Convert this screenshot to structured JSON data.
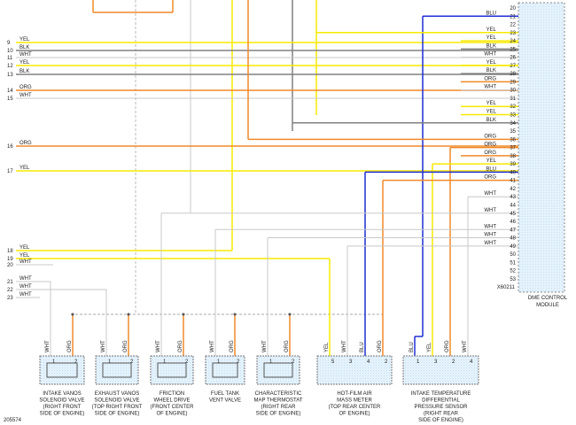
{
  "figure_id": "205574",
  "connector_id": "X60211",
  "module_label": [
    "DME CONTROL",
    "MODULE"
  ],
  "wire_colors": {
    "YEL": "#f7ea00",
    "BLK": "#808080",
    "WHT": "#c8c8c8",
    "ORG": "#f08a2a",
    "BLU": "#1f2fd4"
  },
  "left_pins": [
    {
      "pin": "9",
      "color": "YEL"
    },
    {
      "pin": "10",
      "color": "BLK"
    },
    {
      "pin": "11",
      "color": "WHT"
    },
    {
      "pin": "12",
      "color": "YEL"
    },
    {
      "pin": "13",
      "color": "BLK"
    },
    {
      "pin": "14",
      "color": "ORG"
    },
    {
      "pin": "15",
      "color": "WHT"
    },
    {
      "pin": "16",
      "color": "ORG"
    },
    {
      "pin": "17",
      "color": "YEL"
    },
    {
      "pin": "18",
      "color": "YEL"
    },
    {
      "pin": "19",
      "color": "YEL"
    },
    {
      "pin": "20",
      "color": "WHT"
    },
    {
      "pin": "21",
      "color": "WHT"
    },
    {
      "pin": "22",
      "color": "WHT"
    },
    {
      "pin": "23",
      "color": "WHT"
    }
  ],
  "right_pins": [
    {
      "pin": "20"
    },
    {
      "pin": "21",
      "color": "BLU"
    },
    {
      "pin": "22"
    },
    {
      "pin": "23",
      "color": "YEL"
    },
    {
      "pin": "24",
      "color": "YEL"
    },
    {
      "pin": "25",
      "color": "BLK"
    },
    {
      "pin": "26",
      "color": "WHT"
    },
    {
      "pin": "27",
      "color": "YEL"
    },
    {
      "pin": "28",
      "color": "BLK"
    },
    {
      "pin": "29",
      "color": "ORG"
    },
    {
      "pin": "30",
      "color": "WHT"
    },
    {
      "pin": "31"
    },
    {
      "pin": "32",
      "color": "YEL"
    },
    {
      "pin": "33",
      "color": "YEL"
    },
    {
      "pin": "34",
      "color": "BLK"
    },
    {
      "pin": "35"
    },
    {
      "pin": "36",
      "color": "ORG"
    },
    {
      "pin": "37",
      "color": "ORG"
    },
    {
      "pin": "38",
      "color": "ORG"
    },
    {
      "pin": "39",
      "color": "YEL"
    },
    {
      "pin": "40",
      "color": "BLU"
    },
    {
      "pin": "41",
      "color": "ORG"
    },
    {
      "pin": "42"
    },
    {
      "pin": "43",
      "color": "WHT"
    },
    {
      "pin": "44"
    },
    {
      "pin": "45",
      "color": "WHT"
    },
    {
      "pin": "46"
    },
    {
      "pin": "47",
      "color": "WHT"
    },
    {
      "pin": "48",
      "color": "WHT"
    },
    {
      "pin": "49",
      "color": "WHT"
    },
    {
      "pin": "50"
    },
    {
      "pin": "51"
    },
    {
      "pin": "52"
    },
    {
      "pin": "53"
    }
  ],
  "components": [
    {
      "label": [
        "INTAKE VANOS",
        "SOLENOID VALVE",
        "(RIGHT FRONT",
        "SIDE OF ENGINE)"
      ],
      "pins": [
        {
          "wire": "WHT",
          "pin": "1"
        },
        {
          "wire": "ORG",
          "pin": "2"
        }
      ]
    },
    {
      "label": [
        "EXHAUST VANOS",
        "SOLENOID VALVE",
        "(TOP RIGHT FRONT",
        "SIDE OF ENGINE)"
      ],
      "pins": [
        {
          "wire": "WHT",
          "pin": "1"
        },
        {
          "wire": "ORG",
          "pin": "2"
        }
      ]
    },
    {
      "label": [
        "FRICTION",
        "WHEEL DRIVE",
        "(FRONT CENTER",
        "OF ENGINE)"
      ],
      "pins": [
        {
          "wire": "WHT",
          "pin": "1"
        },
        {
          "wire": "ORG",
          "pin": "2"
        }
      ]
    },
    {
      "label": [
        "FUEL TANK",
        "VENT VALVE"
      ],
      "pins": [
        {
          "wire": "WHT",
          "pin": "1"
        },
        {
          "wire": "ORG",
          "pin": "2"
        }
      ]
    },
    {
      "label": [
        "CHARACTERISTIC",
        "MAP THERMOSTAT",
        "(RIGHT REAR",
        "SIDE OF ENGINE)"
      ],
      "pins": [
        {
          "wire": "WHT",
          "pin": "1"
        },
        {
          "wire": "ORG",
          "pin": "2"
        }
      ]
    },
    {
      "label": [
        "HOT-FILM AIR",
        "MASS METER",
        "(TOP REAR CENTER",
        "OF ENGINE)"
      ],
      "pins": [
        {
          "wire": "YEL",
          "pin": "5"
        },
        {
          "wire": "WHT",
          "pin": "3"
        },
        {
          "wire": "BLU",
          "pin": "4"
        },
        {
          "wire": "ORG",
          "pin": "2"
        }
      ]
    },
    {
      "label": [
        "INTAKE TEMPERATURE",
        "DIFFERENTIAL",
        "PRESSURE SENSOR",
        "(RIGHT REAR",
        "SIDE OF ENGINE)"
      ],
      "pins": [
        {
          "wire": "BLU",
          "pin": "1"
        },
        {
          "wire": "YEL",
          "pin": "3"
        },
        {
          "wire": "ORG",
          "pin": "2"
        },
        {
          "wire": "WHT",
          "pin": "4"
        }
      ]
    }
  ]
}
